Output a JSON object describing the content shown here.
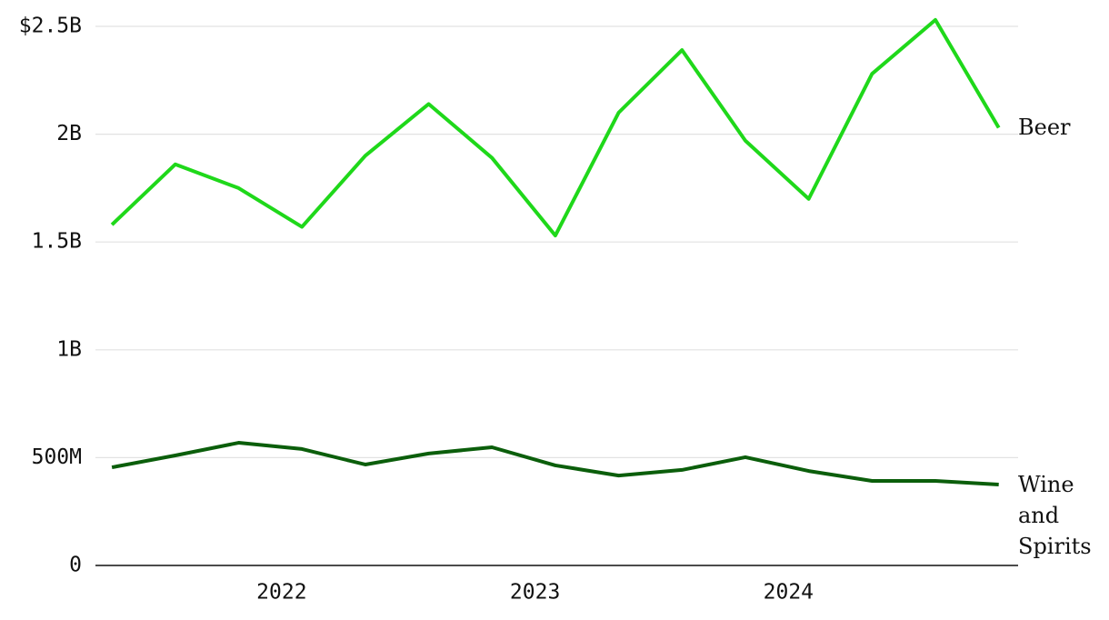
{
  "chart_data": {
    "type": "line",
    "x": [
      2021.33,
      2021.58,
      2021.83,
      2022.08,
      2022.33,
      2022.58,
      2022.83,
      2023.08,
      2023.33,
      2023.58,
      2023.83,
      2024.08,
      2024.33,
      2024.58,
      2024.83
    ],
    "series": [
      {
        "name": "Beer",
        "color": "#1fd81a",
        "values": [
          1580000000,
          1860000000,
          1750000000,
          1570000000,
          1900000000,
          2140000000,
          1890000000,
          1530000000,
          2100000000,
          2390000000,
          1970000000,
          1700000000,
          2280000000,
          2530000000,
          2030000000
        ]
      },
      {
        "name": "Wine and Spirits",
        "color": "#0b5e0b",
        "values": [
          455000000,
          510000000,
          569000000,
          540000000,
          468000000,
          519000000,
          548000000,
          464000000,
          417000000,
          443000000,
          502000000,
          438000000,
          392000000,
          392000000,
          375000000
        ]
      }
    ],
    "xlim": [
      2021.265,
      2024.91
    ],
    "xticks": [
      2022,
      2023,
      2024
    ],
    "ylim": [
      0,
      2500000000
    ],
    "yticks": [
      {
        "value": 0,
        "label": "0"
      },
      {
        "value": 500000000,
        "label": "500M"
      },
      {
        "value": 1000000000,
        "label": "1B"
      },
      {
        "value": 1500000000,
        "label": "1.5B"
      },
      {
        "value": 2000000000,
        "label": "2B"
      },
      {
        "value": 2500000000,
        "label": "$2.5B"
      }
    ],
    "grid": true
  }
}
